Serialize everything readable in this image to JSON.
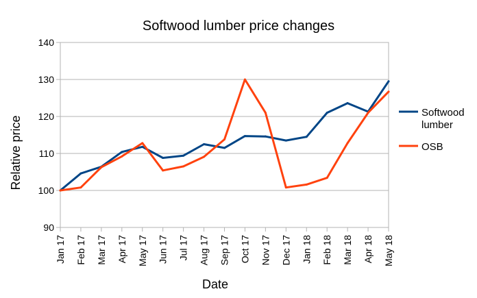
{
  "chart_data": {
    "type": "line",
    "title": "Softwood lumber price changes",
    "xlabel": "Date",
    "ylabel": "Relative price",
    "ylim": [
      90,
      140
    ],
    "yticks": [
      90,
      100,
      110,
      120,
      130,
      140
    ],
    "grid": "horizontal",
    "legend": "right",
    "categories": [
      "Jan 17",
      "Feb 17",
      "Mar 17",
      "Apr 17",
      "May 17",
      "Jun 17",
      "Jul 17",
      "Aug 17",
      "Sep 17",
      "Oct 17",
      "Nov 17",
      "Dec 17",
      "Jan 18",
      "Feb 18",
      "Mar 18",
      "Apr 18",
      "May 18"
    ],
    "series": [
      {
        "name": "Softwood lumber",
        "legend_lines": [
          "Softwood",
          "lumber"
        ],
        "color": "#004586",
        "values": [
          100,
          104.6,
          106.4,
          110.4,
          111.8,
          108.8,
          109.4,
          112.5,
          111.5,
          114.7,
          114.6,
          113.5,
          114.5,
          121.0,
          123.6,
          121.3,
          129.5
        ]
      },
      {
        "name": "OSB",
        "legend_lines": [
          "OSB"
        ],
        "color": "#ff420e",
        "values": [
          100,
          100.8,
          106.3,
          109.2,
          112.8,
          105.4,
          106.5,
          109.1,
          113.8,
          130.0,
          121.0,
          100.8,
          101.6,
          103.4,
          112.8,
          121.0,
          126.7
        ]
      }
    ]
  }
}
